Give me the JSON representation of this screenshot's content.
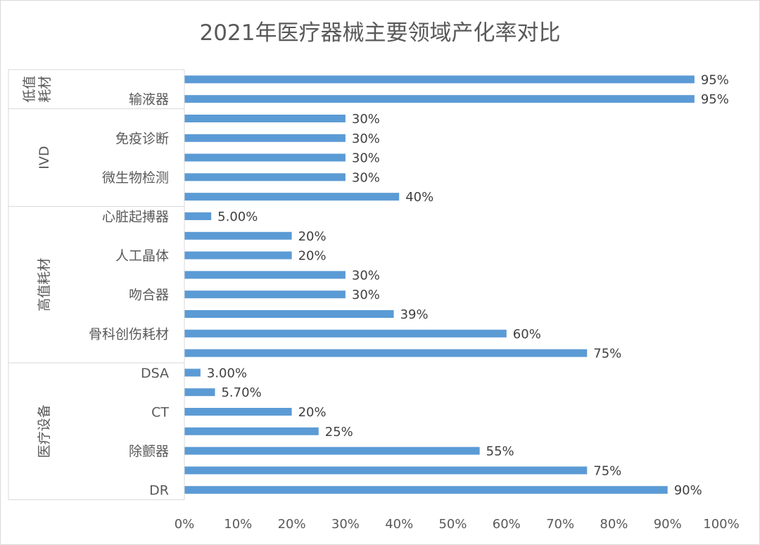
{
  "chart_data": {
    "type": "bar",
    "orientation": "horizontal",
    "title": "2021年医疗器械主要领域产化率对比",
    "bar_color": "#5b9bd5",
    "xlim": [
      0,
      1
    ],
    "x_ticks": [
      "0%",
      "10%",
      "20%",
      "30%",
      "40%",
      "50%",
      "60%",
      "70%",
      "80%",
      "90%",
      "100%"
    ],
    "grid": false,
    "legend": "none",
    "groups": [
      {
        "name": "低值耗材",
        "bars": [
          {
            "label": "",
            "value": 0.95,
            "value_label": "95%"
          },
          {
            "label": "输液器",
            "value": 0.95,
            "value_label": "95%"
          }
        ]
      },
      {
        "name": "IVD",
        "bars": [
          {
            "label": "",
            "value": 0.3,
            "value_label": "30%"
          },
          {
            "label": "免疫诊断",
            "value": 0.3,
            "value_label": "30%"
          },
          {
            "label": "",
            "value": 0.3,
            "value_label": "30%"
          },
          {
            "label": "微生物检测",
            "value": 0.3,
            "value_label": "30%"
          },
          {
            "label": "",
            "value": 0.4,
            "value_label": "40%"
          }
        ]
      },
      {
        "name": "高值耗材",
        "bars": [
          {
            "label": "心脏起搏器",
            "value": 0.05,
            "value_label": "5.00%"
          },
          {
            "label": "",
            "value": 0.2,
            "value_label": "20%"
          },
          {
            "label": "人工晶体",
            "value": 0.2,
            "value_label": "20%"
          },
          {
            "label": "",
            "value": 0.3,
            "value_label": "30%"
          },
          {
            "label": "吻合器",
            "value": 0.3,
            "value_label": "30%"
          },
          {
            "label": "",
            "value": 0.39,
            "value_label": "39%"
          },
          {
            "label": "骨科创伤耗材",
            "value": 0.6,
            "value_label": "60%"
          },
          {
            "label": "",
            "value": 0.75,
            "value_label": "75%"
          }
        ]
      },
      {
        "name": "医疗设备",
        "bars": [
          {
            "label": "DSA",
            "value": 0.03,
            "value_label": "3.00%"
          },
          {
            "label": "",
            "value": 0.057,
            "value_label": "5.70%"
          },
          {
            "label": "CT",
            "value": 0.2,
            "value_label": "20%"
          },
          {
            "label": "",
            "value": 0.25,
            "value_label": "25%"
          },
          {
            "label": "除颤器",
            "value": 0.55,
            "value_label": "55%"
          },
          {
            "label": "",
            "value": 0.75,
            "value_label": "75%"
          },
          {
            "label": "DR",
            "value": 0.9,
            "value_label": "90%"
          }
        ]
      }
    ]
  }
}
